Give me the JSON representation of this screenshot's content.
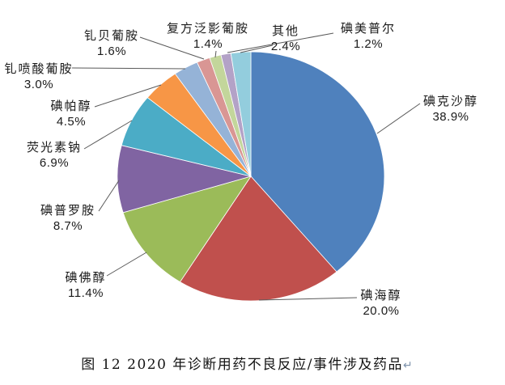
{
  "figure": {
    "caption": "图 12  2020 年诊断用药不良反应/事件涉及药品",
    "paragraph_mark": "↵"
  },
  "chart_data": {
    "type": "pie",
    "title": "图 12  2020 年诊断用药不良反应/事件涉及药品",
    "unit": "%",
    "direction": "clockwise",
    "start_angle_deg": 0,
    "labels_outside": true,
    "legend": "none",
    "categories": [
      "碘克沙醇",
      "碘海醇",
      "碘佛醇",
      "碘普罗胺",
      "荧光素钠",
      "碘帕醇",
      "钆喷酸葡胺",
      "钆贝葡胺",
      "复方泛影葡胺",
      "碘美普尔",
      "其他"
    ],
    "values": [
      38.9,
      20.0,
      11.4,
      8.7,
      6.9,
      4.5,
      3.0,
      1.6,
      1.4,
      1.2,
      2.4
    ],
    "pct_labels": [
      "38.9%",
      "20.0%",
      "11.4%",
      "8.7%",
      "6.9%",
      "4.5%",
      "3.0%",
      "1.6%",
      "1.4%",
      "1.2%",
      "2.4%"
    ],
    "colors": [
      "#4F81BD",
      "#C0504D",
      "#9BBB59",
      "#8064A2",
      "#4BACC6",
      "#F79646",
      "#95B3D7",
      "#D99694",
      "#C3D69B",
      "#B3A2C7",
      "#93CDDD"
    ],
    "leader_line_color": "#595959",
    "slice_border_color": "#FFFFFF",
    "background_color": "#FFFFFF"
  }
}
